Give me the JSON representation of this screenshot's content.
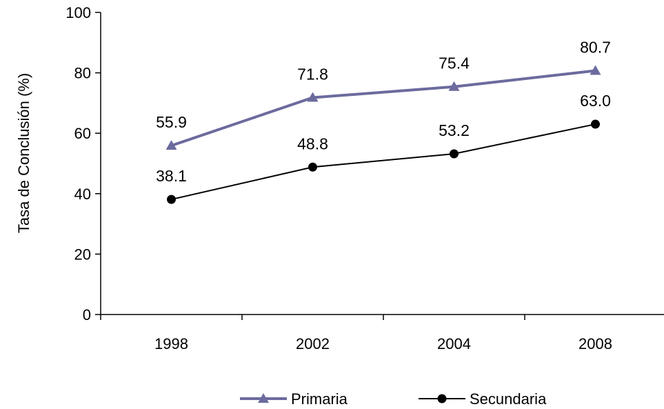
{
  "chart_data": {
    "type": "line",
    "categories": [
      "1998",
      "2002",
      "2004",
      "2008"
    ],
    "series": [
      {
        "name": "Primaria",
        "values": [
          55.9,
          71.8,
          75.4,
          80.7
        ],
        "labels": [
          "55.9",
          "71.8",
          "75.4",
          "80.7"
        ],
        "color": "#6b6b9e",
        "marker": "triangle"
      },
      {
        "name": "Secundaria",
        "values": [
          38.1,
          48.8,
          53.2,
          63.0
        ],
        "labels": [
          "38.1",
          "48.8",
          "53.2",
          "63.0"
        ],
        "color": "#000000",
        "marker": "circle"
      }
    ],
    "title": "",
    "xlabel": "",
    "ylabel": "Tasa de Conclusión (%)",
    "ylim": [
      0,
      100
    ],
    "yticks": [
      0,
      20,
      40,
      60,
      80,
      100
    ],
    "ytick_labels": [
      "0",
      "20",
      "40",
      "60",
      "80",
      "100"
    ],
    "grid": false,
    "legend_position": "bottom"
  }
}
